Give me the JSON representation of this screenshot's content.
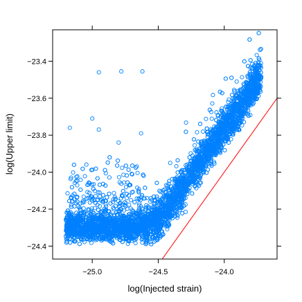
{
  "chart_data": {
    "type": "scatter",
    "title": "",
    "xlabel": "log(Injected strain)",
    "ylabel": "log(Upper limit)",
    "xlim": [
      -25.3,
      -23.6
    ],
    "ylim": [
      -24.47,
      -23.23
    ],
    "x_ticks": [
      -25.0,
      -24.5,
      -24.0
    ],
    "x_tick_labels": [
      "−25.0",
      "−24.5",
      "−24.0"
    ],
    "y_ticks": [
      -24.4,
      -24.2,
      -24.0,
      -23.8,
      -23.6,
      -23.4
    ],
    "y_tick_labels": [
      "−24.4",
      "−24.2",
      "−24.0",
      "−23.8",
      "−23.6",
      "−23.4"
    ],
    "grid": false,
    "legend": "none",
    "point_color": "#0080ff",
    "reference_line": {
      "label": "y = x",
      "color": "#ff0000",
      "x": [
        -24.47,
        -23.6
      ],
      "y": [
        -24.47,
        -23.6
      ]
    },
    "series": [
      {
        "marker": "open-circle",
        "x_range": [
          -25.2,
          -23.72
        ],
        "description_of_trend": "flat near -24.3 for x < -24.6, then rising roughly linearly to about -23.45 at x = -23.72, lying above the y = x line",
        "x": [
          -25.2,
          -25.1,
          -25.0,
          -24.9,
          -24.8,
          -24.7,
          -24.6,
          -24.5,
          -24.4,
          -24.3,
          -24.2,
          -24.1,
          -24.0,
          -23.9,
          -23.8,
          -23.72
        ],
        "y_center": [
          -24.3,
          -24.3,
          -24.3,
          -24.3,
          -24.3,
          -24.3,
          -24.29,
          -24.25,
          -24.17,
          -24.07,
          -23.96,
          -23.86,
          -23.76,
          -23.67,
          -23.56,
          -23.48
        ],
        "outliers": [
          {
            "x": -24.95,
            "y": -23.46
          },
          {
            "x": -24.78,
            "y": -23.455
          },
          {
            "x": -24.62,
            "y": -23.455
          },
          {
            "x": -25.17,
            "y": -23.76
          },
          {
            "x": -25.0,
            "y": -23.71
          },
          {
            "x": -24.95,
            "y": -23.77
          },
          {
            "x": -24.8,
            "y": -23.84
          },
          {
            "x": -24.63,
            "y": -23.79
          }
        ]
      }
    ]
  }
}
